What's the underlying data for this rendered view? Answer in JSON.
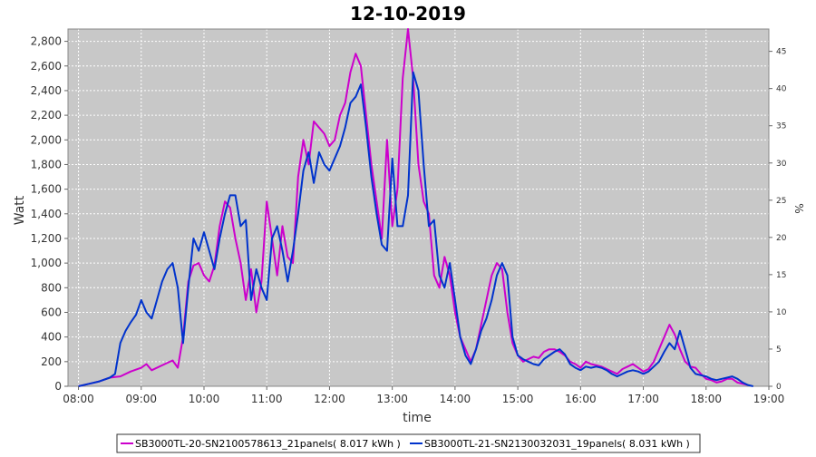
{
  "chart_data": {
    "type": "line",
    "title": "12-10-2019",
    "xlabel": "time",
    "ylabel": "Watt",
    "ylabel_right": "%",
    "x_range": [
      "07:50",
      "19:00"
    ],
    "x_ticks": [
      "08:00",
      "09:00",
      "10:00",
      "11:00",
      "12:00",
      "13:00",
      "14:00",
      "15:00",
      "16:00",
      "17:00",
      "18:00",
      "19:00"
    ],
    "ylim": [
      0,
      2900
    ],
    "y_ticks": [
      0,
      200,
      400,
      600,
      800,
      1000,
      1200,
      1400,
      1600,
      1800,
      2000,
      2200,
      2400,
      2600,
      2800
    ],
    "y_right_lim": [
      0,
      48
    ],
    "y_right_ticks": [
      0,
      5,
      10,
      15,
      20,
      25,
      30,
      35,
      40,
      45
    ],
    "grid": true,
    "legend_position": "bottom",
    "colors": {
      "plot_background": "#c8c8c8",
      "grid": "#ffffff"
    },
    "series": [
      {
        "name": "SB3000TL-20-SN2100578613_21panels( 8.017 kWh )",
        "color": "#cc00cc",
        "points": [
          [
            "08:00",
            0
          ],
          [
            "08:10",
            20
          ],
          [
            "08:20",
            40
          ],
          [
            "08:30",
            70
          ],
          [
            "08:40",
            80
          ],
          [
            "08:50",
            120
          ],
          [
            "09:00",
            150
          ],
          [
            "09:05",
            180
          ],
          [
            "09:10",
            130
          ],
          [
            "09:20",
            170
          ],
          [
            "09:30",
            210
          ],
          [
            "09:35",
            150
          ],
          [
            "09:40",
            400
          ],
          [
            "09:45",
            850
          ],
          [
            "09:50",
            980
          ],
          [
            "09:55",
            1000
          ],
          [
            "10:00",
            900
          ],
          [
            "10:05",
            850
          ],
          [
            "10:10",
            980
          ],
          [
            "10:15",
            1300
          ],
          [
            "10:20",
            1500
          ],
          [
            "10:25",
            1450
          ],
          [
            "10:30",
            1200
          ],
          [
            "10:35",
            1000
          ],
          [
            "10:40",
            700
          ],
          [
            "10:45",
            950
          ],
          [
            "10:50",
            600
          ],
          [
            "10:55",
            850
          ],
          [
            "11:00",
            1500
          ],
          [
            "11:05",
            1200
          ],
          [
            "11:10",
            900
          ],
          [
            "11:15",
            1300
          ],
          [
            "11:20",
            1050
          ],
          [
            "11:25",
            1000
          ],
          [
            "11:30",
            1700
          ],
          [
            "11:35",
            2000
          ],
          [
            "11:40",
            1800
          ],
          [
            "11:45",
            2150
          ],
          [
            "11:50",
            2100
          ],
          [
            "11:55",
            2050
          ],
          [
            "12:00",
            1950
          ],
          [
            "12:05",
            2000
          ],
          [
            "12:10",
            2200
          ],
          [
            "12:15",
            2300
          ],
          [
            "12:20",
            2550
          ],
          [
            "12:25",
            2700
          ],
          [
            "12:30",
            2600
          ],
          [
            "12:35",
            2200
          ],
          [
            "12:40",
            1800
          ],
          [
            "12:45",
            1500
          ],
          [
            "12:50",
            1200
          ],
          [
            "12:55",
            2000
          ],
          [
            "13:00",
            1300
          ],
          [
            "13:05",
            1600
          ],
          [
            "13:10",
            2500
          ],
          [
            "13:15",
            2900
          ],
          [
            "13:20",
            2500
          ],
          [
            "13:25",
            1800
          ],
          [
            "13:30",
            1500
          ],
          [
            "13:35",
            1400
          ],
          [
            "13:40",
            900
          ],
          [
            "13:45",
            800
          ],
          [
            "13:50",
            1050
          ],
          [
            "13:55",
            900
          ],
          [
            "14:00",
            600
          ],
          [
            "14:05",
            400
          ],
          [
            "14:10",
            300
          ],
          [
            "14:15",
            200
          ],
          [
            "14:20",
            300
          ],
          [
            "14:25",
            500
          ],
          [
            "14:30",
            700
          ],
          [
            "14:35",
            900
          ],
          [
            "14:40",
            1000
          ],
          [
            "14:45",
            950
          ],
          [
            "14:50",
            600
          ],
          [
            "14:55",
            350
          ],
          [
            "15:00",
            250
          ],
          [
            "15:05",
            200
          ],
          [
            "15:10",
            220
          ],
          [
            "15:15",
            240
          ],
          [
            "15:20",
            230
          ],
          [
            "15:25",
            280
          ],
          [
            "15:30",
            300
          ],
          [
            "15:35",
            300
          ],
          [
            "15:40",
            280
          ],
          [
            "15:45",
            250
          ],
          [
            "15:50",
            200
          ],
          [
            "15:55",
            180
          ],
          [
            "16:00",
            150
          ],
          [
            "16:05",
            200
          ],
          [
            "16:10",
            180
          ],
          [
            "16:15",
            170
          ],
          [
            "16:20",
            160
          ],
          [
            "16:25",
            140
          ],
          [
            "16:30",
            120
          ],
          [
            "16:35",
            100
          ],
          [
            "16:40",
            140
          ],
          [
            "16:45",
            160
          ],
          [
            "16:50",
            180
          ],
          [
            "16:55",
            150
          ],
          [
            "17:00",
            120
          ],
          [
            "17:05",
            140
          ],
          [
            "17:10",
            200
          ],
          [
            "17:15",
            300
          ],
          [
            "17:20",
            400
          ],
          [
            "17:25",
            500
          ],
          [
            "17:30",
            420
          ],
          [
            "17:35",
            300
          ],
          [
            "17:40",
            200
          ],
          [
            "17:45",
            160
          ],
          [
            "17:50",
            150
          ],
          [
            "17:55",
            100
          ],
          [
            "18:00",
            60
          ],
          [
            "18:05",
            50
          ],
          [
            "18:10",
            30
          ],
          [
            "18:15",
            40
          ],
          [
            "18:20",
            60
          ],
          [
            "18:25",
            60
          ],
          [
            "18:30",
            30
          ],
          [
            "18:35",
            20
          ],
          [
            "18:40",
            10
          ]
        ]
      },
      {
        "name": "SB3000TL-21-SN2130032031_19panels( 8.031 kWh )",
        "color": "#0033cc",
        "points": [
          [
            "08:00",
            0
          ],
          [
            "08:10",
            20
          ],
          [
            "08:20",
            40
          ],
          [
            "08:30",
            70
          ],
          [
            "08:35",
            100
          ],
          [
            "08:40",
            350
          ],
          [
            "08:45",
            450
          ],
          [
            "08:50",
            520
          ],
          [
            "08:55",
            580
          ],
          [
            "09:00",
            700
          ],
          [
            "09:05",
            600
          ],
          [
            "09:10",
            550
          ],
          [
            "09:15",
            700
          ],
          [
            "09:20",
            850
          ],
          [
            "09:25",
            950
          ],
          [
            "09:30",
            1000
          ],
          [
            "09:35",
            800
          ],
          [
            "09:40",
            350
          ],
          [
            "09:45",
            800
          ],
          [
            "09:50",
            1200
          ],
          [
            "09:55",
            1100
          ],
          [
            "10:00",
            1250
          ],
          [
            "10:05",
            1100
          ],
          [
            "10:10",
            950
          ],
          [
            "10:15",
            1200
          ],
          [
            "10:20",
            1400
          ],
          [
            "10:25",
            1550
          ],
          [
            "10:30",
            1550
          ],
          [
            "10:35",
            1300
          ],
          [
            "10:40",
            1350
          ],
          [
            "10:45",
            700
          ],
          [
            "10:50",
            950
          ],
          [
            "10:55",
            800
          ],
          [
            "11:00",
            700
          ],
          [
            "11:05",
            1200
          ],
          [
            "11:10",
            1300
          ],
          [
            "11:15",
            1100
          ],
          [
            "11:20",
            850
          ],
          [
            "11:25",
            1100
          ],
          [
            "11:30",
            1400
          ],
          [
            "11:35",
            1750
          ],
          [
            "11:40",
            1900
          ],
          [
            "11:45",
            1650
          ],
          [
            "11:50",
            1900
          ],
          [
            "11:55",
            1800
          ],
          [
            "12:00",
            1750
          ],
          [
            "12:05",
            1850
          ],
          [
            "12:10",
            1950
          ],
          [
            "12:15",
            2100
          ],
          [
            "12:20",
            2300
          ],
          [
            "12:25",
            2350
          ],
          [
            "12:30",
            2450
          ],
          [
            "12:35",
            2100
          ],
          [
            "12:40",
            1700
          ],
          [
            "12:45",
            1400
          ],
          [
            "12:50",
            1150
          ],
          [
            "12:55",
            1100
          ],
          [
            "13:00",
            1850
          ],
          [
            "13:05",
            1300
          ],
          [
            "13:10",
            1300
          ],
          [
            "13:15",
            1550
          ],
          [
            "13:20",
            2550
          ],
          [
            "13:25",
            2400
          ],
          [
            "13:30",
            1800
          ],
          [
            "13:35",
            1300
          ],
          [
            "13:40",
            1350
          ],
          [
            "13:45",
            900
          ],
          [
            "13:50",
            800
          ],
          [
            "13:55",
            1000
          ],
          [
            "14:00",
            700
          ],
          [
            "14:05",
            400
          ],
          [
            "14:10",
            250
          ],
          [
            "14:15",
            180
          ],
          [
            "14:20",
            300
          ],
          [
            "14:25",
            450
          ],
          [
            "14:30",
            550
          ],
          [
            "14:35",
            700
          ],
          [
            "14:40",
            900
          ],
          [
            "14:45",
            1000
          ],
          [
            "14:50",
            900
          ],
          [
            "14:55",
            400
          ],
          [
            "15:00",
            250
          ],
          [
            "15:05",
            220
          ],
          [
            "15:10",
            200
          ],
          [
            "15:15",
            180
          ],
          [
            "15:20",
            170
          ],
          [
            "15:25",
            220
          ],
          [
            "15:30",
            250
          ],
          [
            "15:35",
            280
          ],
          [
            "15:40",
            300
          ],
          [
            "15:45",
            260
          ],
          [
            "15:50",
            180
          ],
          [
            "15:55",
            150
          ],
          [
            "16:00",
            130
          ],
          [
            "16:05",
            160
          ],
          [
            "16:10",
            150
          ],
          [
            "16:15",
            160
          ],
          [
            "16:20",
            150
          ],
          [
            "16:25",
            130
          ],
          [
            "16:30",
            100
          ],
          [
            "16:35",
            80
          ],
          [
            "16:40",
            100
          ],
          [
            "16:45",
            120
          ],
          [
            "16:50",
            130
          ],
          [
            "16:55",
            120
          ],
          [
            "17:00",
            100
          ],
          [
            "17:05",
            120
          ],
          [
            "17:10",
            160
          ],
          [
            "17:15",
            200
          ],
          [
            "17:20",
            280
          ],
          [
            "17:25",
            350
          ],
          [
            "17:30",
            300
          ],
          [
            "17:35",
            450
          ],
          [
            "17:40",
            300
          ],
          [
            "17:45",
            150
          ],
          [
            "17:50",
            100
          ],
          [
            "17:55",
            90
          ],
          [
            "18:00",
            80
          ],
          [
            "18:05",
            60
          ],
          [
            "18:10",
            50
          ],
          [
            "18:15",
            60
          ],
          [
            "18:20",
            70
          ],
          [
            "18:25",
            80
          ],
          [
            "18:30",
            60
          ],
          [
            "18:35",
            30
          ],
          [
            "18:40",
            10
          ],
          [
            "18:45",
            0
          ]
        ]
      }
    ]
  }
}
